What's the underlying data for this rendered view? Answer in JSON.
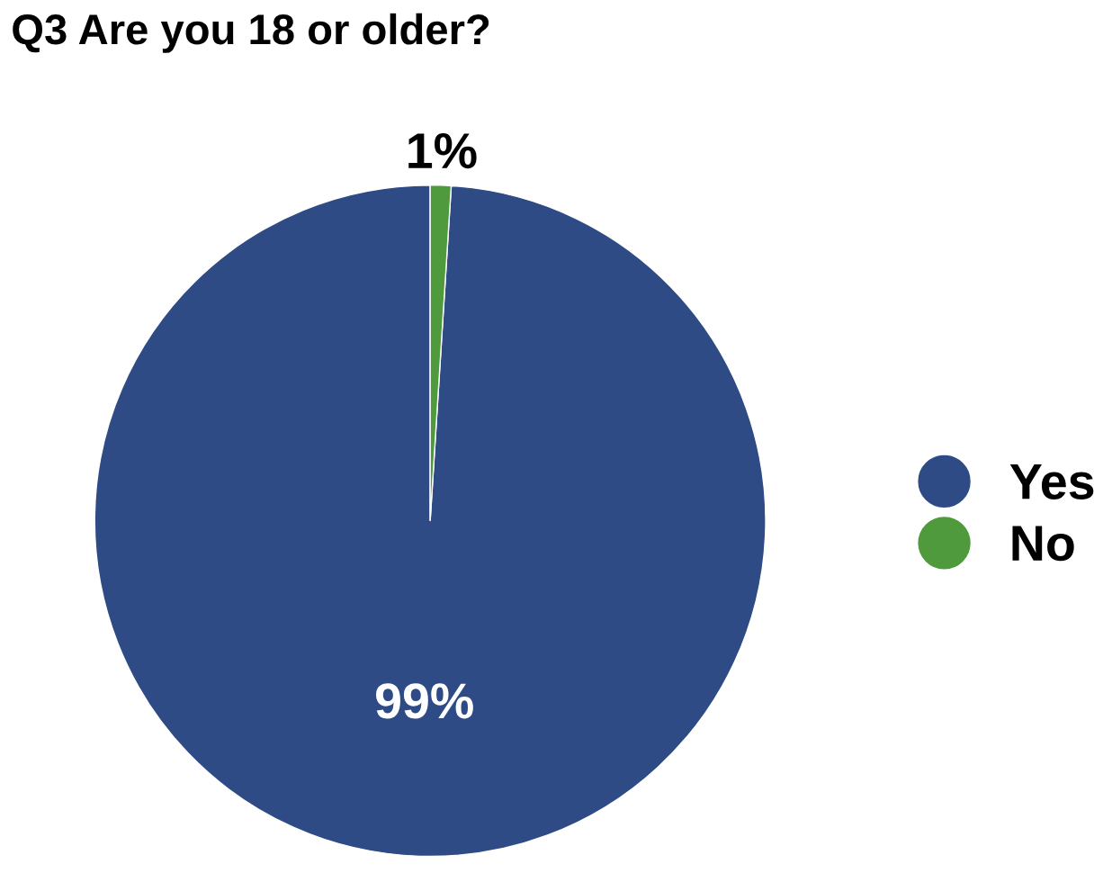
{
  "chart_data": {
    "type": "pie",
    "title": "Q3 Are you 18 or older?",
    "categories": [
      "Yes",
      "No"
    ],
    "values": [
      99,
      1
    ],
    "colors": [
      "#2e4b86",
      "#4f9a3c"
    ],
    "value_labels": [
      "99%",
      "1%"
    ],
    "legend": "right"
  }
}
